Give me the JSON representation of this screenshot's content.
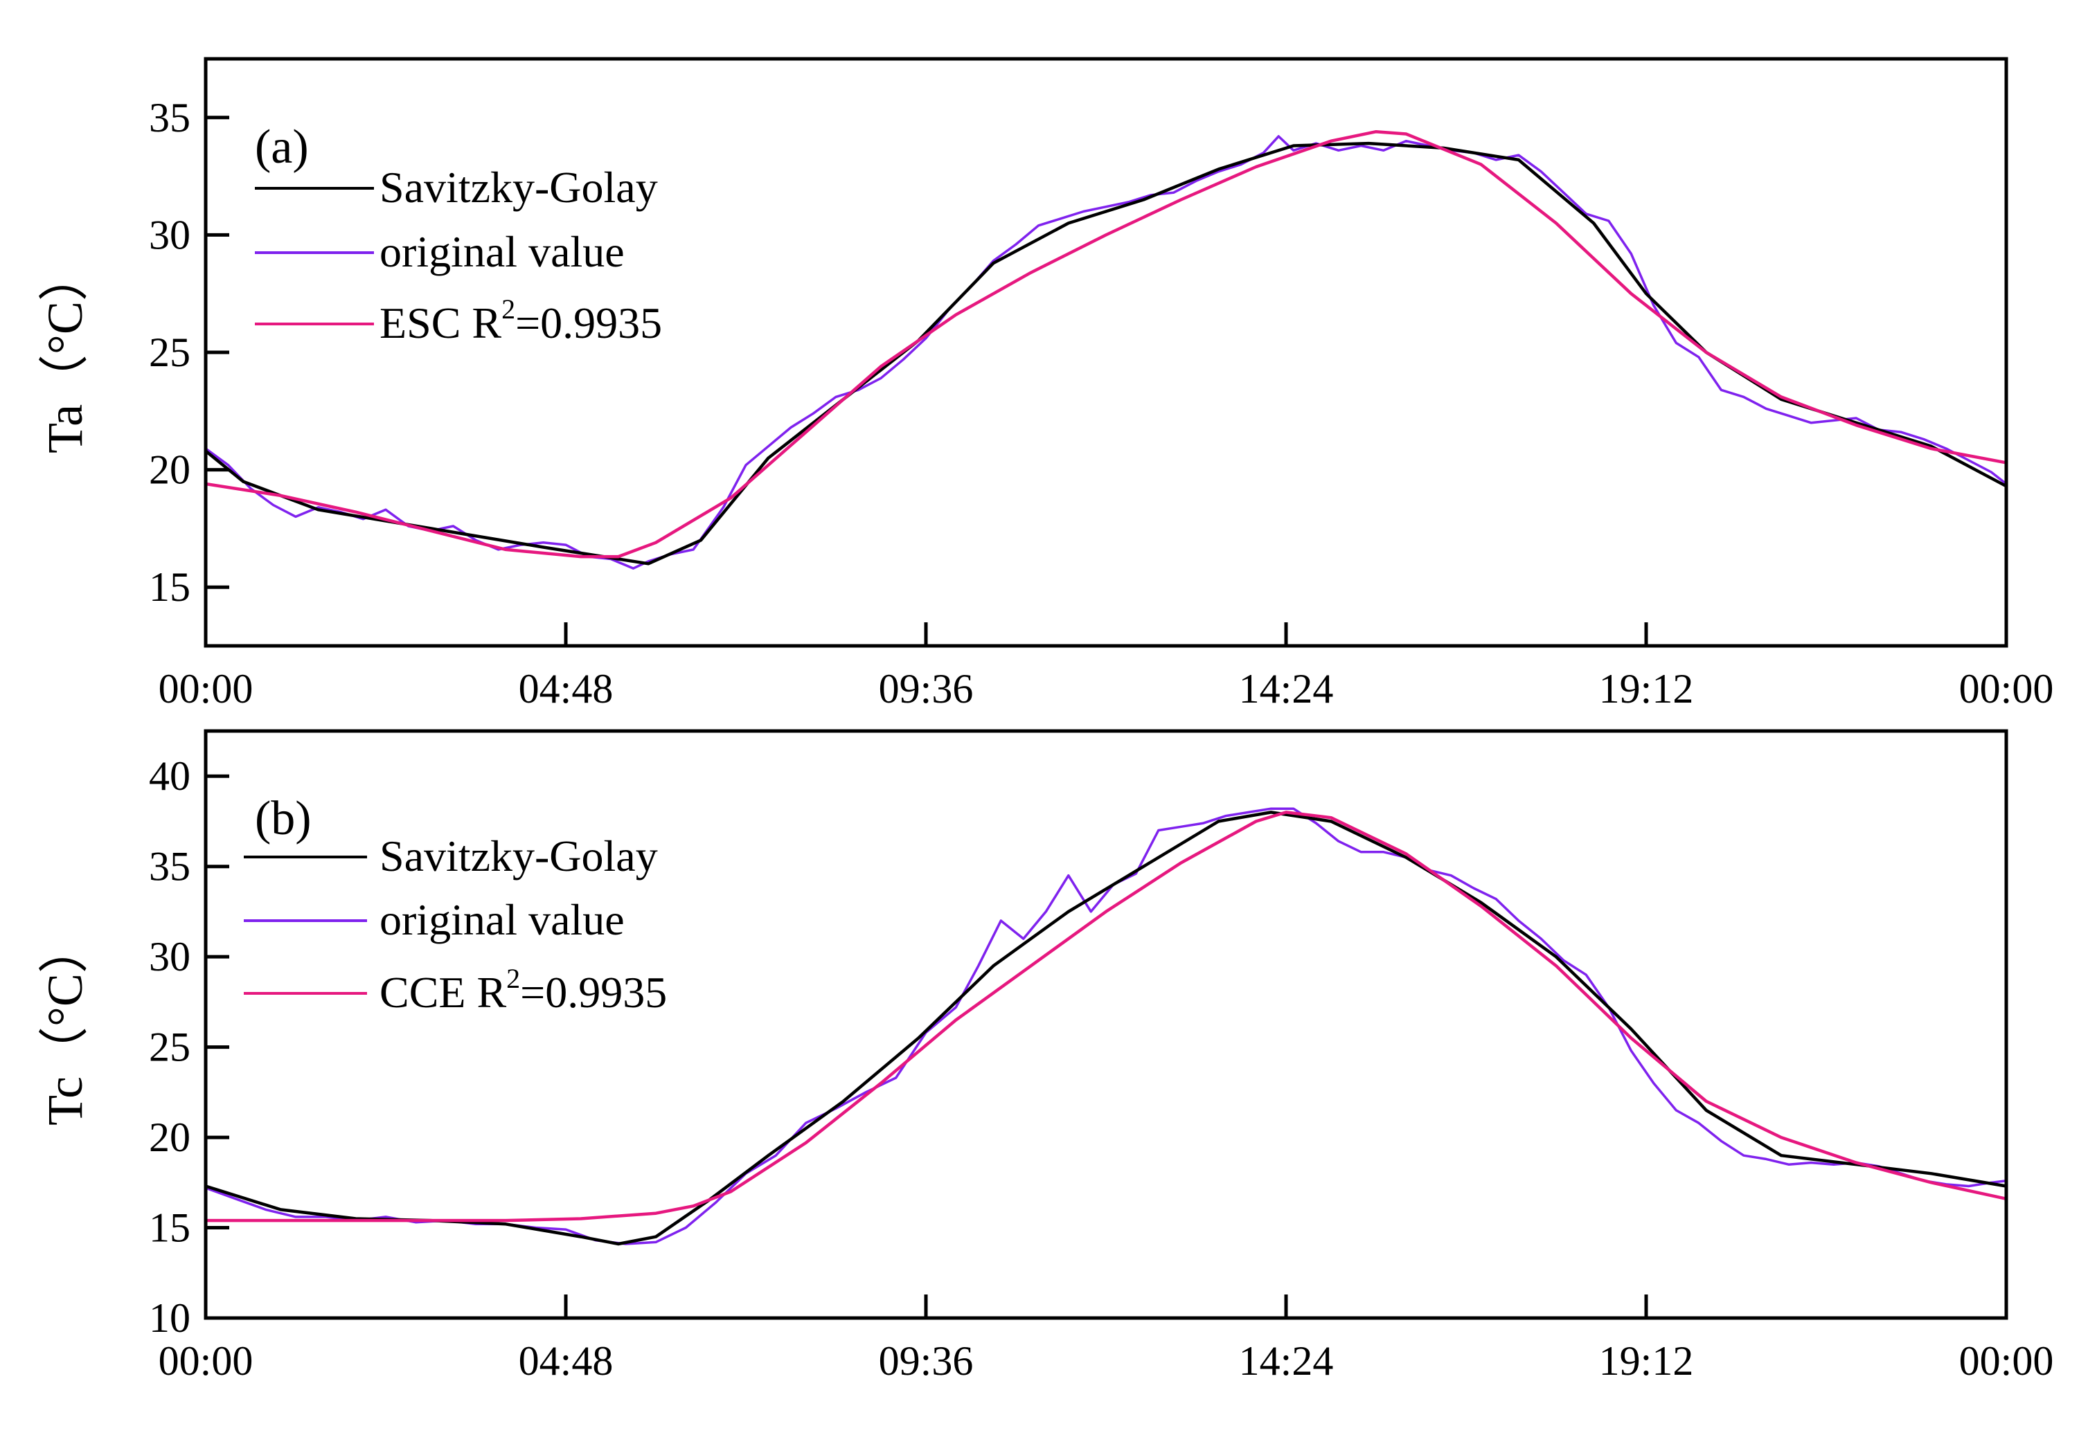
{
  "chart_data": [
    {
      "type": "line",
      "panel_label": "(a)",
      "ylabel": "Ta（°C）",
      "xlabel": "",
      "x_ticks": [
        "00:00",
        "04:48",
        "09:36",
        "14:24",
        "19:12",
        "00:00"
      ],
      "x_range_hours": [
        0,
        24
      ],
      "ylim": [
        12.5,
        37.5
      ],
      "y_ticks": [
        15,
        20,
        25,
        30,
        35
      ],
      "legend_position": "top-left",
      "series": [
        {
          "name": "Savitzky-Golay",
          "color": "#000000",
          "x_hours": [
            0,
            0.5,
            1.5,
            3,
            4.5,
            5.5,
            5.9,
            6.6,
            7.5,
            8.5,
            9.5,
            10.5,
            11.5,
            12.5,
            13.5,
            14.5,
            15.5,
            16.5,
            17.5,
            18.5,
            19.2,
            20,
            21,
            22,
            23,
            24
          ],
          "values": [
            20.8,
            19.5,
            18.3,
            17.5,
            16.7,
            16.2,
            16.0,
            17.0,
            20.5,
            23.0,
            25.5,
            28.8,
            30.5,
            31.5,
            32.8,
            33.8,
            33.9,
            33.7,
            33.2,
            30.5,
            27.5,
            25.0,
            23.0,
            22.0,
            21.0,
            19.3
          ]
        },
        {
          "name": "original value",
          "color": "#7f22ee",
          "x_hours": [
            0,
            0.3,
            0.6,
            0.9,
            1.2,
            1.5,
            1.8,
            2.1,
            2.4,
            2.7,
            3.0,
            3.3,
            3.6,
            3.9,
            4.2,
            4.5,
            4.8,
            5.1,
            5.4,
            5.7,
            5.9,
            6.2,
            6.5,
            6.9,
            7.2,
            7.5,
            7.8,
            8.1,
            8.4,
            8.7,
            9.0,
            9.3,
            9.6,
            9.9,
            10.2,
            10.5,
            10.8,
            11.1,
            11.4,
            11.7,
            12.0,
            12.3,
            12.6,
            12.9,
            13.2,
            13.5,
            13.8,
            14.1,
            14.3,
            14.5,
            14.8,
            15.1,
            15.4,
            15.7,
            16.0,
            16.3,
            16.6,
            16.9,
            17.2,
            17.5,
            17.8,
            18.1,
            18.4,
            18.7,
            19.0,
            19.3,
            19.6,
            19.9,
            20.2,
            20.5,
            20.8,
            21.1,
            21.4,
            21.7,
            22.0,
            22.3,
            22.6,
            22.9,
            23.2,
            23.5,
            23.8,
            24.0
          ],
          "values": [
            20.9,
            20.2,
            19.2,
            18.5,
            18.0,
            18.4,
            18.2,
            17.9,
            18.3,
            17.6,
            17.4,
            17.6,
            17.0,
            16.6,
            16.8,
            16.9,
            16.8,
            16.3,
            16.2,
            15.8,
            16.1,
            16.4,
            16.6,
            18.4,
            20.2,
            21.0,
            21.8,
            22.4,
            23.1,
            23.4,
            23.9,
            24.7,
            25.6,
            26.8,
            27.8,
            28.9,
            29.6,
            30.4,
            30.7,
            31.0,
            31.2,
            31.4,
            31.7,
            31.8,
            32.3,
            32.7,
            33.0,
            33.5,
            34.2,
            33.6,
            33.9,
            33.6,
            33.8,
            33.6,
            34.0,
            33.8,
            33.6,
            33.5,
            33.2,
            33.4,
            32.7,
            31.8,
            30.9,
            30.6,
            29.2,
            27.0,
            25.4,
            24.8,
            23.4,
            23.1,
            22.6,
            22.3,
            22.0,
            22.1,
            22.2,
            21.7,
            21.6,
            21.3,
            20.9,
            20.4,
            19.9,
            19.4
          ]
        },
        {
          "name": "ESC R²=0.9935",
          "legend_prefix": "ESC R",
          "legend_sup": "2",
          "legend_suffix": "=0.9935",
          "color": "#e6187f",
          "x_hours": [
            0,
            1,
            2,
            3,
            4,
            5,
            5.5,
            6,
            7,
            8,
            9,
            10,
            11,
            12,
            13,
            14,
            15,
            15.6,
            16,
            17,
            18,
            19,
            20,
            21,
            22,
            23,
            24
          ],
          "values": [
            19.4,
            18.9,
            18.2,
            17.4,
            16.6,
            16.3,
            16.3,
            16.9,
            18.8,
            21.6,
            24.4,
            26.6,
            28.4,
            30.0,
            31.5,
            32.9,
            34.0,
            34.4,
            34.3,
            33.0,
            30.5,
            27.5,
            25.0,
            23.1,
            21.9,
            20.9,
            20.3
          ]
        }
      ]
    },
    {
      "type": "line",
      "panel_label": "(b)",
      "ylabel": "Tc（°C）",
      "xlabel": "",
      "x_ticks": [
        "00:00",
        "04:48",
        "09:36",
        "14:24",
        "19:12",
        "00:00"
      ],
      "x_range_hours": [
        0,
        24
      ],
      "ylim": [
        10,
        42.5
      ],
      "y_ticks": [
        10,
        15,
        20,
        25,
        30,
        35,
        40
      ],
      "legend_position": "top-left",
      "series": [
        {
          "name": "Savitzky-Golay",
          "color": "#000000",
          "x_hours": [
            0,
            1,
            2,
            3,
            4,
            5,
            5.5,
            6,
            6.7,
            7.5,
            8.5,
            9.5,
            10.5,
            11.5,
            12.5,
            13.5,
            14.2,
            15,
            16,
            17,
            18,
            19,
            20,
            21,
            22,
            23,
            24
          ],
          "values": [
            17.3,
            16.0,
            15.5,
            15.4,
            15.2,
            14.5,
            14.1,
            14.5,
            16.5,
            19.0,
            22.0,
            25.5,
            29.5,
            32.5,
            35.0,
            37.5,
            38.0,
            37.5,
            35.5,
            33.0,
            30.0,
            26.0,
            21.5,
            19.0,
            18.5,
            18.0,
            17.3
          ]
        },
        {
          "name": "original value",
          "color": "#7f22ee",
          "x_hours": [
            0,
            0.4,
            0.8,
            1.2,
            1.6,
            2.0,
            2.4,
            2.8,
            3.2,
            3.6,
            4.0,
            4.4,
            4.8,
            5.2,
            5.6,
            6.0,
            6.4,
            6.8,
            7.2,
            7.6,
            8.0,
            8.4,
            8.8,
            9.2,
            9.6,
            10.0,
            10.3,
            10.6,
            10.9,
            11.2,
            11.5,
            11.8,
            12.1,
            12.4,
            12.7,
            13.0,
            13.3,
            13.6,
            13.9,
            14.2,
            14.5,
            14.8,
            15.1,
            15.4,
            15.7,
            16.0,
            16.3,
            16.6,
            16.9,
            17.2,
            17.5,
            17.8,
            18.1,
            18.4,
            18.7,
            19.0,
            19.3,
            19.6,
            19.9,
            20.2,
            20.5,
            20.8,
            21.1,
            21.4,
            21.7,
            22.0,
            22.3,
            22.6,
            22.9,
            23.2,
            23.5,
            23.8,
            24.0
          ],
          "values": [
            17.2,
            16.6,
            16.0,
            15.6,
            15.6,
            15.4,
            15.6,
            15.3,
            15.4,
            15.2,
            15.2,
            15.0,
            14.9,
            14.3,
            14.1,
            14.2,
            15.0,
            16.4,
            18.0,
            19.0,
            20.8,
            21.6,
            22.5,
            23.3,
            25.8,
            27.2,
            29.5,
            32.0,
            31.0,
            32.5,
            34.5,
            32.5,
            34.0,
            34.6,
            37.0,
            37.2,
            37.4,
            37.8,
            38.0,
            38.2,
            38.2,
            37.4,
            36.4,
            35.8,
            35.8,
            35.5,
            34.8,
            34.5,
            33.8,
            33.2,
            32.0,
            31.0,
            29.8,
            29.0,
            27.2,
            24.8,
            23.0,
            21.5,
            20.8,
            19.8,
            19.0,
            18.8,
            18.5,
            18.6,
            18.5,
            18.6,
            18.4,
            18.0,
            17.6,
            17.4,
            17.3,
            17.5,
            17.6
          ]
        },
        {
          "name": "CCE R²=0.9935",
          "legend_prefix": "CCE R",
          "legend_sup": "2",
          "legend_suffix": "=0.9935",
          "color": "#e6187f",
          "x_hours": [
            0,
            1,
            2,
            3,
            4,
            5,
            6,
            6.5,
            7,
            8,
            9,
            10,
            11,
            12,
            13,
            14,
            14.4,
            15,
            16,
            17,
            18,
            19,
            20,
            21,
            22,
            23,
            24
          ],
          "values": [
            15.4,
            15.4,
            15.4,
            15.4,
            15.4,
            15.5,
            15.8,
            16.2,
            17.0,
            19.7,
            23.0,
            26.5,
            29.5,
            32.5,
            35.2,
            37.5,
            38.0,
            37.7,
            35.7,
            32.8,
            29.5,
            25.5,
            22.0,
            20.0,
            18.6,
            17.5,
            16.6
          ]
        }
      ]
    }
  ]
}
